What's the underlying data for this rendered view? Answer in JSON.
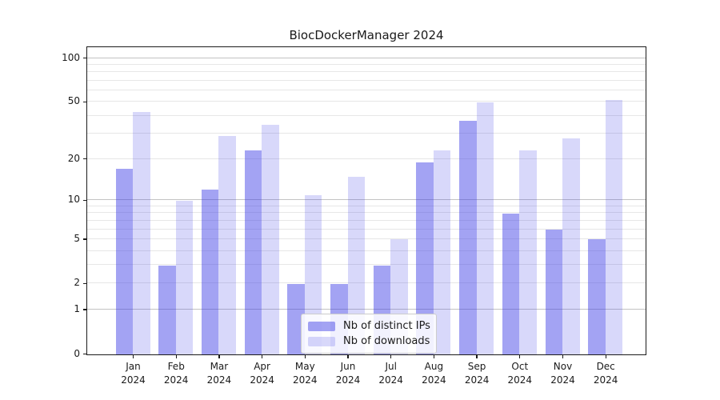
{
  "title": "BiocDockerManager 2024",
  "colors": {
    "bar_base": "#3c3ce6",
    "ips_fill": "rgba(60,60,230,0.47)",
    "downloads_fill": "rgba(60,60,230,0.20)",
    "grid_minor": "#e7e7e7",
    "grid_major": "#c3c3c3",
    "axis": "#1a1a1a"
  },
  "legend": {
    "items": [
      {
        "label": "Nb of distinct IPs",
        "series": "ips"
      },
      {
        "label": "Nb of downloads",
        "series": "downloads"
      }
    ]
  },
  "x_axis": {
    "months": [
      "Jan",
      "Feb",
      "Mar",
      "Apr",
      "May",
      "Jun",
      "Jul",
      "Aug",
      "Sep",
      "Oct",
      "Nov",
      "Dec"
    ],
    "year": "2024"
  },
  "y_axis": {
    "tick_labels": [
      "0",
      "1",
      "2",
      "5",
      "10",
      "20",
      "50",
      "100"
    ]
  },
  "chart_data": {
    "type": "bar",
    "title": "BiocDockerManager 2024",
    "categories": [
      "Jan 2024",
      "Feb 2024",
      "Mar 2024",
      "Apr 2024",
      "May 2024",
      "Jun 2024",
      "Jul 2024",
      "Aug 2024",
      "Sep 2024",
      "Oct 2024",
      "Nov 2024",
      "Dec 2024"
    ],
    "series": [
      {
        "name": "Nb of distinct IPs",
        "values": [
          17,
          3,
          12,
          23,
          2,
          2,
          3,
          19,
          37,
          8,
          6,
          5
        ]
      },
      {
        "name": "Nb of downloads",
        "values": [
          43,
          10,
          29,
          35,
          11,
          15,
          5,
          23,
          50,
          23,
          28,
          52
        ]
      }
    ],
    "xlabel": "",
    "ylabel": "",
    "yscale": "log1p",
    "yticks": [
      0,
      1,
      2,
      5,
      10,
      20,
      50,
      100
    ],
    "grid_minor_values": [
      2,
      3,
      4,
      5,
      6,
      7,
      8,
      9,
      20,
      30,
      40,
      50,
      60,
      70,
      80,
      90
    ],
    "grid_major_values": [
      1,
      10,
      100
    ],
    "ylim": [
      0,
      118
    ],
    "grid": "on",
    "legend_position": "lower center"
  }
}
